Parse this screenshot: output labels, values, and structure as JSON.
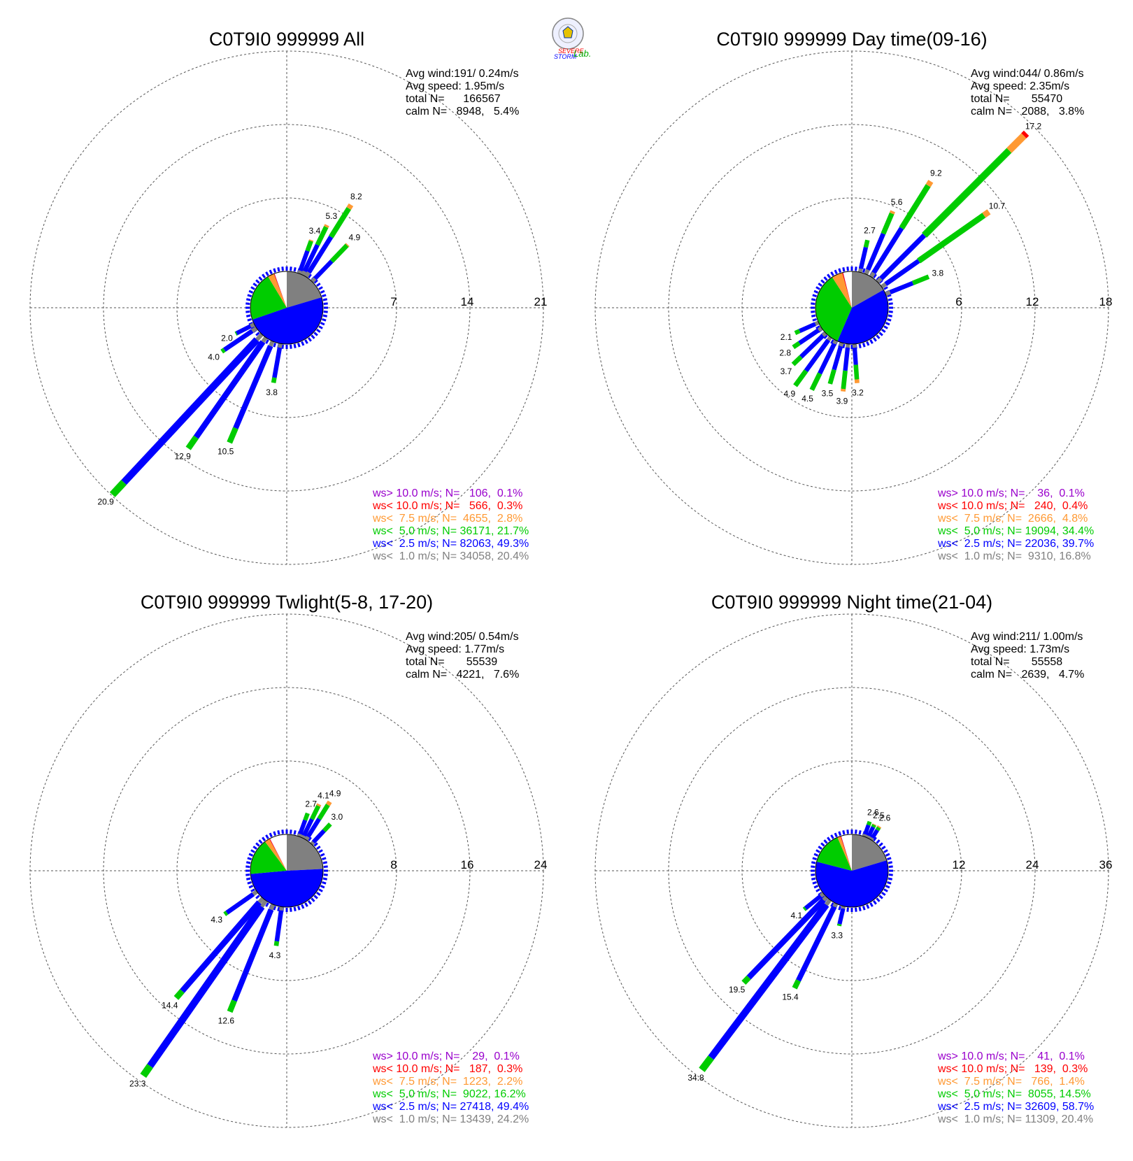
{
  "logo": {
    "text_line1": "SEVERE",
    "text_line2": "STORM",
    "text_lab": "Lab."
  },
  "colors": {
    "calm": "#ffffff",
    "lt1": "#808080",
    "lt2_5": "#0000ff",
    "lt5": "#00cc00",
    "lt7_5": "#ff9933",
    "lt10": "#ff0000",
    "gt10": "#9900cc"
  },
  "chart_data": [
    {
      "type": "wind-rose",
      "title": "C0T9I0 999999 All",
      "stats": {
        "avg_wind": "Avg wind:191/ 0.24m/s",
        "avg_speed": "Avg speed: 1.95m/s",
        "total": "total N=      166567",
        "calm": "calm N=   8948,   5.4%"
      },
      "ring_labels": [
        "7",
        "14",
        "21"
      ],
      "ring_max": 21,
      "pie": {
        "gray": 20.4,
        "blue": 49.3,
        "green": 21.7,
        "orange": 2.8,
        "red": 0.3,
        "purple": 0.1,
        "white": 5.4
      },
      "legend": [
        {
          "text": "ws> 10.0 m/s; N=   106,  0.1%",
          "color": "#9900cc"
        },
        {
          "text": "ws< 10.0 m/s; N=   566,  0.3%",
          "color": "#ff0000"
        },
        {
          "text": "ws<  7.5 m/s; N=  4655,  2.8%",
          "color": "#ff9933"
        },
        {
          "text": "ws<  5.0 m/s; N= 36171, 21.7%",
          "color": "#00cc00"
        },
        {
          "text": "ws<  2.5 m/s; N= 82063, 49.3%",
          "color": "#0000ff"
        },
        {
          "text": "ws<  1.0 m/s; N= 34058, 20.4%",
          "color": "#808080"
        }
      ],
      "bars": [
        {
          "dir": 32,
          "label": "8.2",
          "segments": [
            0.5,
            4.0,
            3.2,
            0.4
          ]
        },
        {
          "dir": 26,
          "label": "5.3",
          "segments": [
            0.4,
            2.8,
            1.9,
            0.2
          ]
        },
        {
          "dir": 20,
          "label": "3.4",
          "segments": [
            0.3,
            2.0,
            1.0,
            0.1
          ]
        },
        {
          "dir": 44,
          "label": "4.9",
          "segments": [
            0.4,
            2.3,
            2.1,
            0.1
          ]
        },
        {
          "dir": 223,
          "label": "20.9",
          "segments": [
            0.7,
            18.6,
            1.6
          ]
        },
        {
          "dir": 215,
          "label": "12.9",
          "segments": [
            0.5,
            11.1,
            1.3
          ]
        },
        {
          "dir": 203,
          "label": "10.5",
          "segments": [
            0.5,
            8.5,
            1.5
          ]
        },
        {
          "dir": 190,
          "label": "3.8",
          "segments": [
            0.4,
            2.9,
            0.5
          ]
        },
        {
          "dir": 236,
          "label": "4.0",
          "segments": [
            0.5,
            3.2,
            0.3
          ]
        },
        {
          "dir": 243,
          "label": "2.0",
          "segments": [
            0.4,
            1.5,
            0.1
          ]
        }
      ]
    },
    {
      "type": "wind-rose",
      "title": "C0T9I0 999999 Day time(09-16)",
      "stats": {
        "avg_wind": "Avg wind:044/ 0.86m/s",
        "avg_speed": "Avg speed: 2.35m/s",
        "total": "total N=       55470",
        "calm": "calm N=   2088,   3.8%"
      },
      "ring_labels": [
        "6",
        "12",
        "18"
      ],
      "ring_max": 18,
      "pie": {
        "gray": 16.8,
        "blue": 39.7,
        "green": 34.4,
        "orange": 4.8,
        "red": 0.4,
        "purple": 0.1,
        "white": 3.8
      },
      "legend": [
        {
          "text": "ws> 10.0 m/s; N=    36,  0.1%",
          "color": "#9900cc"
        },
        {
          "text": "ws< 10.0 m/s; N=   240,  0.4%",
          "color": "#ff0000"
        },
        {
          "text": "ws<  7.5 m/s; N=  2666,  4.8%",
          "color": "#ff9933"
        },
        {
          "text": "ws<  5.0 m/s; N= 19094, 34.4%",
          "color": "#00cc00"
        },
        {
          "text": "ws<  2.5 m/s; N= 22036, 39.7%",
          "color": "#0000ff"
        },
        {
          "text": "ws<  1.0 m/s; N=  9310, 16.8%",
          "color": "#808080"
        }
      ],
      "bars": [
        {
          "dir": 45,
          "label": "17.2",
          "segments": [
            0.4,
            5.0,
            9.8,
            1.7,
            0.3
          ]
        },
        {
          "dir": 55,
          "label": "10.7",
          "segments": [
            0.4,
            3.3,
            6.5,
            0.5
          ]
        },
        {
          "dir": 32,
          "label": "9.2",
          "segments": [
            0.4,
            4.3,
            4.1,
            0.4
          ]
        },
        {
          "dir": 23,
          "label": "5.6",
          "segments": [
            0.4,
            3.2,
            1.8,
            0.2
          ]
        },
        {
          "dir": 13,
          "label": "2.7",
          "segments": [
            0.3,
            1.8,
            0.6
          ]
        },
        {
          "dir": 68,
          "label": "3.8",
          "segments": [
            0.4,
            2.0,
            1.4
          ]
        },
        {
          "dir": 176,
          "label": "3.2",
          "segments": [
            0.3,
            1.4,
            1.2,
            0.3
          ]
        },
        {
          "dir": 186,
          "label": "3.9",
          "segments": [
            0.3,
            1.9,
            1.5,
            0.2
          ]
        },
        {
          "dir": 196,
          "label": "3.5",
          "segments": [
            0.3,
            2.0,
            1.2
          ]
        },
        {
          "dir": 206,
          "label": "4.5",
          "segments": [
            0.3,
            2.7,
            1.5
          ]
        },
        {
          "dir": 216,
          "label": "4.9",
          "segments": [
            0.3,
            3.1,
            1.5
          ]
        },
        {
          "dir": 226,
          "label": "3.7",
          "segments": [
            0.3,
            2.5,
            0.9
          ]
        },
        {
          "dir": 236,
          "label": "2.8",
          "segments": [
            0.3,
            1.9,
            0.6
          ]
        },
        {
          "dir": 246,
          "label": "2.1",
          "segments": [
            0.3,
            1.4,
            0.4
          ]
        }
      ]
    },
    {
      "type": "wind-rose",
      "title": "C0T9I0 999999 Twlight(5-8, 17-20)",
      "stats": {
        "avg_wind": "Avg wind:205/ 0.54m/s",
        "avg_speed": "Avg speed: 1.77m/s",
        "total": "total N=       55539",
        "calm": "calm N=   4221,   7.6%"
      },
      "ring_labels": [
        "8",
        "16",
        "24"
      ],
      "ring_max": 24,
      "pie": {
        "gray": 24.2,
        "blue": 49.4,
        "green": 16.2,
        "orange": 2.2,
        "red": 0.3,
        "purple": 0.1,
        "white": 7.6
      },
      "legend": [
        {
          "text": "ws> 10.0 m/s; N=    29,  0.1%",
          "color": "#9900cc"
        },
        {
          "text": "ws< 10.0 m/s; N=   187,  0.3%",
          "color": "#ff0000"
        },
        {
          "text": "ws<  7.5 m/s; N=  1223,  2.2%",
          "color": "#ff9933"
        },
        {
          "text": "ws<  5.0 m/s; N=  9022, 16.2%",
          "color": "#00cc00"
        },
        {
          "text": "ws<  2.5 m/s; N= 27418, 49.4%",
          "color": "#0000ff"
        },
        {
          "text": "ws<  1.0 m/s; N= 13439, 24.2%",
          "color": "#808080"
        }
      ],
      "bars": [
        {
          "dir": 32,
          "label": "4.9",
          "segments": [
            0.4,
            2.3,
            1.8,
            0.4
          ]
        },
        {
          "dir": 26,
          "label": "4.1",
          "segments": [
            0.3,
            2.0,
            1.6,
            0.2
          ]
        },
        {
          "dir": 20,
          "label": "2.7",
          "segments": [
            0.3,
            1.6,
            0.8
          ]
        },
        {
          "dir": 43,
          "label": "3.0",
          "segments": [
            0.3,
            1.7,
            1.0
          ]
        },
        {
          "dir": 215,
          "label": "23.3",
          "segments": [
            0.8,
            21.2,
            1.3
          ]
        },
        {
          "dir": 221,
          "label": "14.4",
          "segments": [
            0.6,
            12.8,
            1.0
          ]
        },
        {
          "dir": 202,
          "label": "12.6",
          "segments": [
            0.6,
            10.7,
            1.3
          ]
        },
        {
          "dir": 188,
          "label": "4.3",
          "segments": [
            0.4,
            3.4,
            0.5
          ]
        },
        {
          "dir": 235,
          "label": "4.3",
          "segments": [
            0.5,
            3.5,
            0.3
          ]
        }
      ]
    },
    {
      "type": "wind-rose",
      "title": "C0T9I0 999999 Night time(21-04)",
      "stats": {
        "avg_wind": "Avg wind:211/ 1.00m/s",
        "avg_speed": "Avg speed: 1.73m/s",
        "total": "total N=       55558",
        "calm": "calm N=   2639,   4.7%"
      },
      "ring_labels": [
        "12",
        "24",
        "36"
      ],
      "ring_max": 36,
      "pie": {
        "gray": 20.4,
        "blue": 58.7,
        "green": 14.5,
        "orange": 1.4,
        "red": 0.3,
        "purple": 0.1,
        "white": 4.7
      },
      "legend": [
        {
          "text": "ws> 10.0 m/s; N=    41,  0.1%",
          "color": "#9900cc"
        },
        {
          "text": "ws< 10.0 m/s; N=   139,  0.3%",
          "color": "#ff0000"
        },
        {
          "text": "ws<  7.5 m/s; N=   766,  1.4%",
          "color": "#ff9933"
        },
        {
          "text": "ws<  5.0 m/s; N=  8055, 14.5%",
          "color": "#00cc00"
        },
        {
          "text": "ws<  2.5 m/s; N= 32609, 58.7%",
          "color": "#0000ff"
        },
        {
          "text": "ws<  1.0 m/s; N= 11309, 20.4%",
          "color": "#808080"
        }
      ],
      "bars": [
        {
          "dir": 217,
          "label": "34.8",
          "segments": [
            1.0,
            31.3,
            2.5
          ]
        },
        {
          "dir": 224,
          "label": "19.5",
          "segments": [
            0.7,
            17.6,
            1.2
          ]
        },
        {
          "dir": 206,
          "label": "15.4",
          "segments": [
            0.6,
            13.4,
            1.4
          ]
        },
        {
          "dir": 193,
          "label": "3.3",
          "segments": [
            0.4,
            2.6,
            0.3
          ]
        },
        {
          "dir": 231,
          "label": "4.1",
          "segments": [
            0.6,
            3.2,
            0.3
          ]
        },
        {
          "dir": 20,
          "label": "2.6",
          "segments": [
            0.4,
            1.6,
            0.6
          ]
        },
        {
          "dir": 26,
          "label": "2.5",
          "segments": [
            0.4,
            1.6,
            0.4,
            0.1
          ]
        },
        {
          "dir": 32,
          "label": "2.6",
          "segments": [
            0.4,
            1.5,
            0.5,
            0.2
          ]
        }
      ]
    }
  ]
}
